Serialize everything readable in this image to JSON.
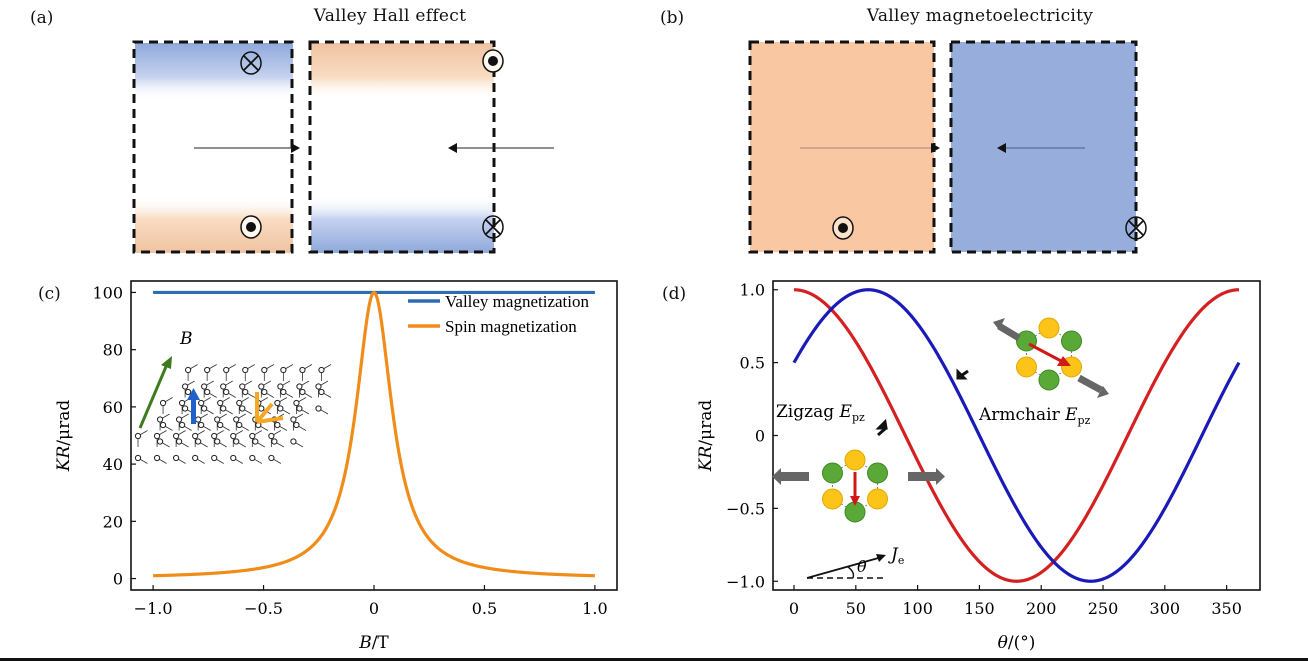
{
  "figure": {
    "panels": {
      "a": {
        "label": "(a)",
        "title": "Valley Hall effect",
        "boxes": [
          {
            "arrow_direction": "right",
            "top_symbol": "into-page",
            "bottom_symbol": "out-of-page",
            "top_color": "#9fb6e0",
            "bottom_color": "#f4c7a6"
          },
          {
            "arrow_direction": "left",
            "top_symbol": "out-of-page",
            "bottom_symbol": "into-page",
            "top_color": "#f4c7a6",
            "bottom_color": "#9fb6e0"
          }
        ]
      },
      "b": {
        "label": "(b)",
        "title": "Valley magnetoelectricity",
        "boxes": [
          {
            "arrow_direction": "right",
            "symbol": "out-of-page",
            "fill": "#f9c7a2"
          },
          {
            "arrow_direction": "left",
            "symbol": "into-page",
            "fill": "#97aedc"
          }
        ]
      },
      "c": {
        "label": "(c)",
        "inset_label": "B"
      },
      "d": {
        "label": "(d)",
        "zigzag_label": "Zigzag",
        "armchair_label": "Armchair",
        "field_symbol": "E",
        "field_subscript": "pz",
        "current_symbol": "J",
        "current_subscript": "e",
        "angle_symbol": "θ"
      }
    }
  },
  "chart_data": [
    {
      "type": "line",
      "panel": "c",
      "title": "",
      "xlabel": "B/T",
      "ylabel": "KR/μrad",
      "xlim": [
        -1.1,
        1.1
      ],
      "ylim": [
        -4,
        104
      ],
      "xticks": [
        -1.0,
        -0.5,
        0,
        0.5,
        1.0
      ],
      "xtick_labels": [
        "−1.0",
        "−0.5",
        "0",
        "0.5",
        "1.0"
      ],
      "yticks": [
        0,
        20,
        40,
        60,
        80,
        100
      ],
      "ytick_labels": [
        "0",
        "20",
        "40",
        "60",
        "80",
        "100"
      ],
      "grid": false,
      "legend_position": "top-right",
      "series": [
        {
          "name": "Valley magnetization",
          "color": "#2a6db3",
          "x": [
            -1.0,
            -0.5,
            0,
            0.5,
            1.0
          ],
          "y": [
            100,
            100,
            100,
            100,
            100
          ]
        },
        {
          "name": "Spin magnetization",
          "color": "#f08c1a",
          "x": [
            -1.0,
            -0.8,
            -0.6,
            -0.5,
            -0.4,
            -0.3,
            -0.25,
            -0.2,
            -0.15,
            -0.1,
            -0.07,
            -0.05,
            -0.03,
            0,
            0.03,
            0.05,
            0.07,
            0.1,
            0.15,
            0.2,
            0.25,
            0.3,
            0.4,
            0.5,
            0.6,
            0.8,
            1.0
          ],
          "y": [
            1.0,
            1.5,
            2.7,
            3.8,
            5.9,
            10.0,
            13.8,
            20.0,
            30.8,
            50.0,
            67.1,
            80.0,
            91.7,
            100,
            91.7,
            80.0,
            67.1,
            50.0,
            30.8,
            20.0,
            13.8,
            10.0,
            5.9,
            3.8,
            2.7,
            1.5,
            1.0
          ]
        }
      ]
    },
    {
      "type": "line",
      "panel": "d",
      "title": "",
      "xlabel": "θ/(°)",
      "ylabel": "KR/μrad",
      "xlim": [
        -17,
        377
      ],
      "ylim": [
        -1.06,
        1.06
      ],
      "xticks": [
        0,
        50,
        100,
        150,
        200,
        250,
        300,
        350
      ],
      "xtick_labels": [
        "0",
        "50",
        "100",
        "150",
        "200",
        "250",
        "300",
        "350"
      ],
      "yticks": [
        -1.0,
        -0.5,
        0,
        0.5,
        1.0
      ],
      "ytick_labels": [
        "−1.0",
        "−0.5",
        "0",
        "0.5",
        "1.0"
      ],
      "grid": false,
      "series": [
        {
          "name": "Zigzag E_pz",
          "color": "#d42020",
          "x": [
            0,
            30,
            60,
            90,
            120,
            150,
            180,
            210,
            240,
            270,
            300,
            330,
            360
          ],
          "y": [
            1.0,
            0.866,
            0.5,
            0.0,
            -0.5,
            -0.866,
            -1.0,
            -0.866,
            -0.5,
            0.0,
            0.5,
            0.866,
            1.0
          ]
        },
        {
          "name": "Armchair E_pz",
          "color": "#1a1ab8",
          "x": [
            0,
            30,
            60,
            90,
            120,
            150,
            180,
            210,
            240,
            270,
            300,
            330,
            360
          ],
          "y": [
            0.5,
            0.866,
            1.0,
            0.866,
            0.5,
            0.0,
            -0.5,
            -0.866,
            -1.0,
            -0.866,
            -0.5,
            0.0,
            0.5
          ]
        }
      ]
    }
  ]
}
